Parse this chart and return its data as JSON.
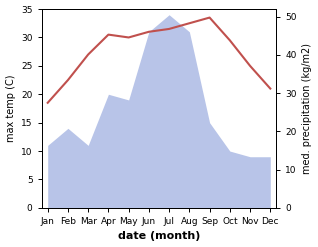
{
  "months": [
    "Jan",
    "Feb",
    "Mar",
    "Apr",
    "May",
    "Jun",
    "Jul",
    "Aug",
    "Sep",
    "Oct",
    "Nov",
    "Dec"
  ],
  "temperature": [
    18.5,
    22.5,
    27.0,
    30.5,
    30.0,
    31.0,
    31.5,
    32.5,
    33.5,
    29.5,
    25.0,
    21.0
  ],
  "precipitation": [
    11.0,
    14.0,
    11.0,
    20.0,
    19.0,
    31.0,
    34.0,
    31.0,
    15.0,
    10.0,
    9.0,
    9.0
  ],
  "temp_color": "#c0504d",
  "precip_fill_color": "#b8c4e8",
  "temp_ylim": [
    0,
    35
  ],
  "precip_ylim": [
    0,
    52
  ],
  "temp_yticks": [
    0,
    5,
    10,
    15,
    20,
    25,
    30,
    35
  ],
  "precip_yticks": [
    0,
    10,
    20,
    30,
    40,
    50
  ],
  "ylabel_left": "max temp (C)",
  "ylabel_right": "med. precipitation (kg/m2)",
  "xlabel": "date (month)",
  "bg_color": "#ffffff"
}
